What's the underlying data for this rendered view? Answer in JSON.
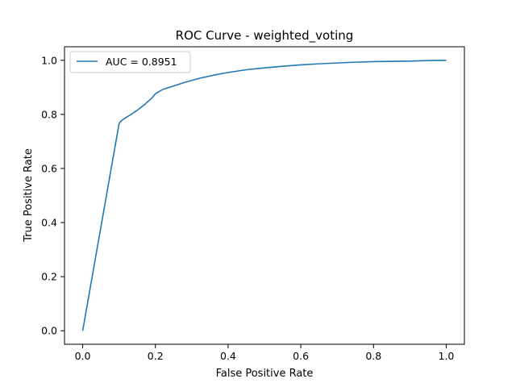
{
  "chart_data": {
    "type": "line",
    "title": "ROC Curve - weighted_voting",
    "xlabel": "False Positive Rate",
    "ylabel": "True Positive Rate",
    "xlim": [
      -0.05,
      1.05
    ],
    "ylim": [
      -0.05,
      1.05
    ],
    "x_ticks": [
      0.0,
      0.2,
      0.4,
      0.6,
      0.8,
      1.0
    ],
    "y_ticks": [
      0.0,
      0.2,
      0.4,
      0.6,
      0.8,
      1.0
    ],
    "x_tick_labels": [
      "0.0",
      "0.2",
      "0.4",
      "0.6",
      "0.8",
      "1.0"
    ],
    "y_tick_labels": [
      "0.0",
      "0.2",
      "0.4",
      "0.6",
      "0.8",
      "1.0"
    ],
    "grid": false,
    "legend_position": "upper-left",
    "series": [
      {
        "name": "AUC = 0.8951",
        "color": "#1f77b4",
        "x": [
          0.0,
          0.1,
          0.105,
          0.115,
          0.13,
          0.15,
          0.17,
          0.19,
          0.2,
          0.22,
          0.25,
          0.28,
          0.32,
          0.36,
          0.4,
          0.45,
          0.5,
          0.55,
          0.6,
          0.65,
          0.7,
          0.75,
          0.8,
          0.85,
          0.9,
          0.95,
          1.0
        ],
        "y": [
          0.0,
          0.765,
          0.775,
          0.785,
          0.797,
          0.815,
          0.836,
          0.86,
          0.876,
          0.892,
          0.905,
          0.918,
          0.933,
          0.945,
          0.955,
          0.965,
          0.972,
          0.978,
          0.983,
          0.987,
          0.99,
          0.993,
          0.995,
          0.996,
          0.997,
          0.999,
          1.0
        ]
      }
    ]
  }
}
